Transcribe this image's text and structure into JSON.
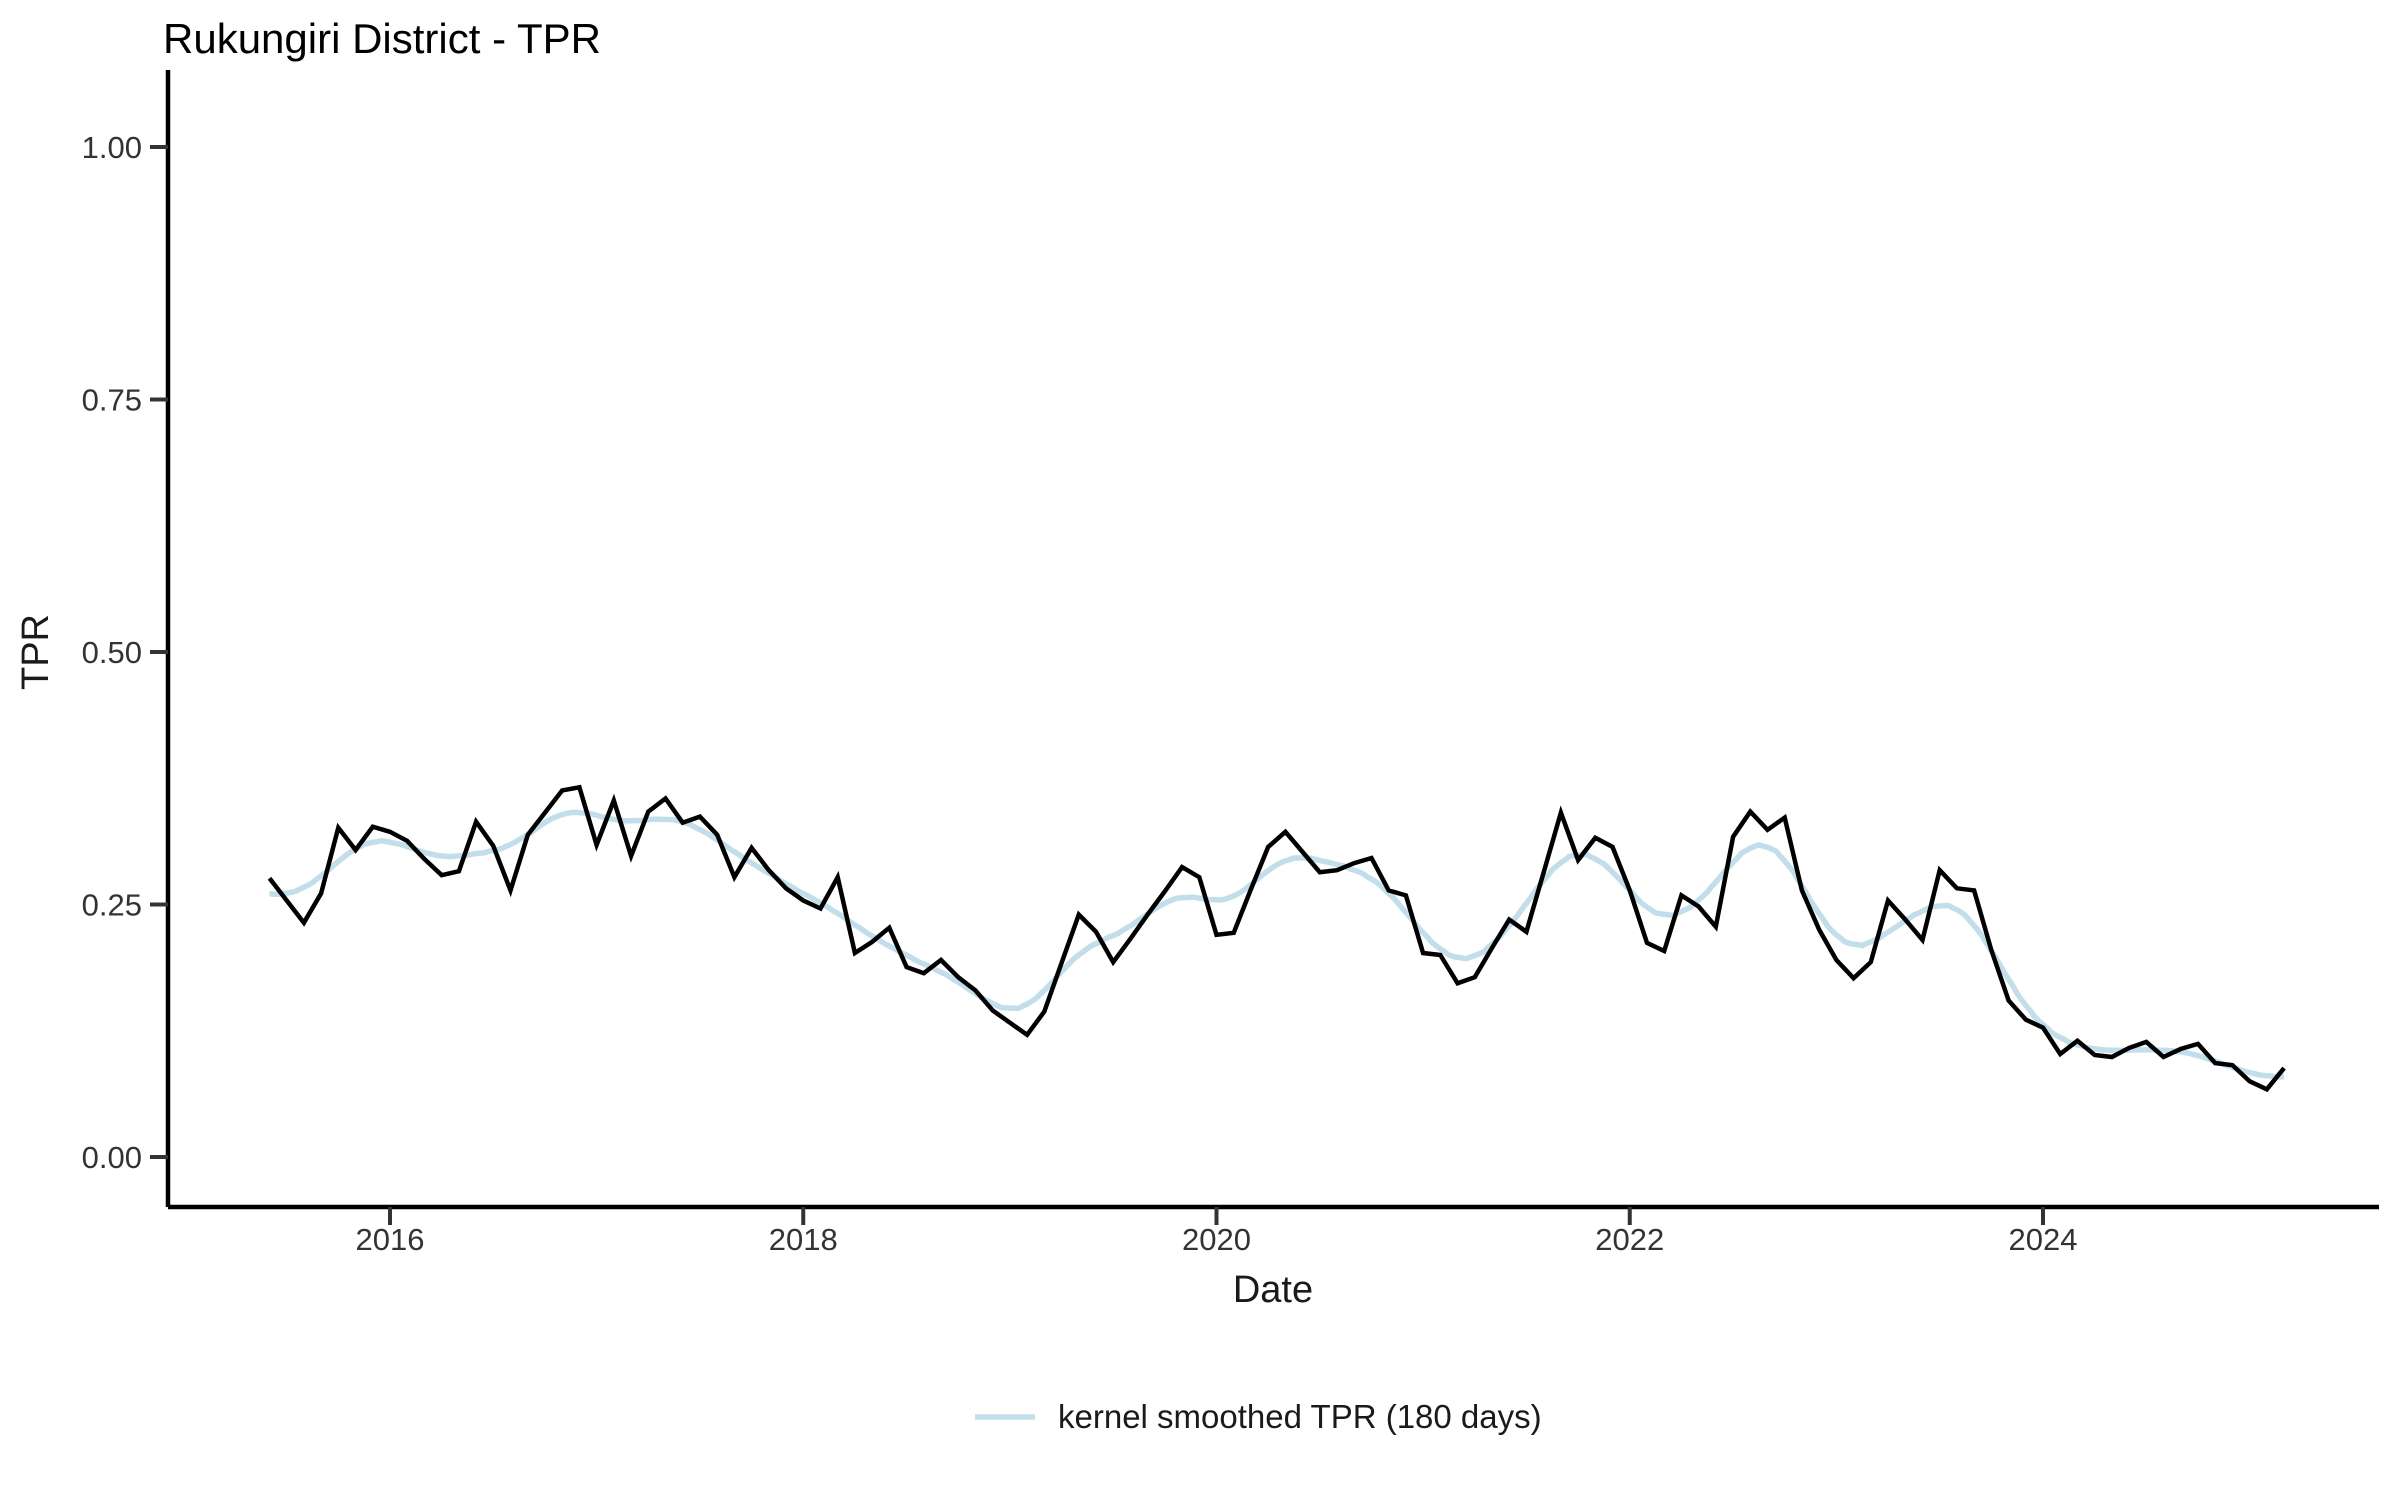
{
  "page": {
    "background": "#ffffff"
  },
  "chart_data": {
    "type": "line",
    "title": "Rukungiri District - TPR",
    "xlabel": "Date",
    "ylabel": "TPR",
    "grid": "off",
    "x_axis": {
      "tick_labels": [
        "2016",
        "2018",
        "2020",
        "2022",
        "2024"
      ],
      "tick_years": [
        2016,
        2018,
        2020,
        2022,
        2024
      ]
    },
    "y_axis": {
      "tick_labels": [
        "0.00",
        "0.25",
        "0.50",
        "0.75",
        "1.00"
      ],
      "tick_values": [
        0,
        0.25,
        0.5,
        0.75,
        1
      ],
      "range": [
        0,
        1
      ]
    },
    "legend": {
      "position": "bottom-center",
      "entries": [
        {
          "label": "kernel smoothed TPR (180 days)",
          "color": "#c2deea",
          "shape": "line"
        }
      ]
    },
    "series": [
      {
        "name": "TPR",
        "color": "#000000",
        "start_month": "2015-06",
        "interval": "monthly",
        "values": [
          0.276,
          0.254,
          0.232,
          0.261,
          0.326,
          0.304,
          0.327,
          0.322,
          0.313,
          0.295,
          0.279,
          0.283,
          0.332,
          0.308,
          0.264,
          0.319,
          0.341,
          0.363,
          0.366,
          0.309,
          0.353,
          0.298,
          0.342,
          0.355,
          0.331,
          0.337,
          0.319,
          0.277,
          0.306,
          0.284,
          0.266,
          0.254,
          0.246,
          0.277,
          0.202,
          0.213,
          0.227,
          0.188,
          0.182,
          0.195,
          0.178,
          0.165,
          0.145,
          0.133,
          0.121,
          0.144,
          0.192,
          0.24,
          0.223,
          0.193,
          0.216,
          0.24,
          0.263,
          0.287,
          0.277,
          0.22,
          0.222,
          0.265,
          0.307,
          0.322,
          0.302,
          0.282,
          0.284,
          0.291,
          0.296,
          0.264,
          0.259,
          0.202,
          0.2,
          0.172,
          0.178,
          0.207,
          0.235,
          0.223,
          0.282,
          0.341,
          0.294,
          0.316,
          0.307,
          0.264,
          0.212,
          0.204,
          0.259,
          0.248,
          0.228,
          0.317,
          0.342,
          0.324,
          0.336,
          0.264,
          0.225,
          0.195,
          0.177,
          0.193,
          0.254,
          0.235,
          0.215,
          0.284,
          0.266,
          0.264,
          0.205,
          0.155,
          0.136,
          0.128,
          0.102,
          0.115,
          0.101,
          0.099,
          0.108,
          0.114,
          0.099,
          0.107,
          0.112,
          0.093,
          0.091,
          0.075,
          0.067,
          0.088
        ]
      },
      {
        "name": "kernel smoothed TPR (180 days)",
        "color": "#c2deea",
        "derived_from": "TPR",
        "kernel": {
          "type": "gaussian",
          "window_days": 180,
          "sigma_days": 55
        }
      }
    ]
  }
}
